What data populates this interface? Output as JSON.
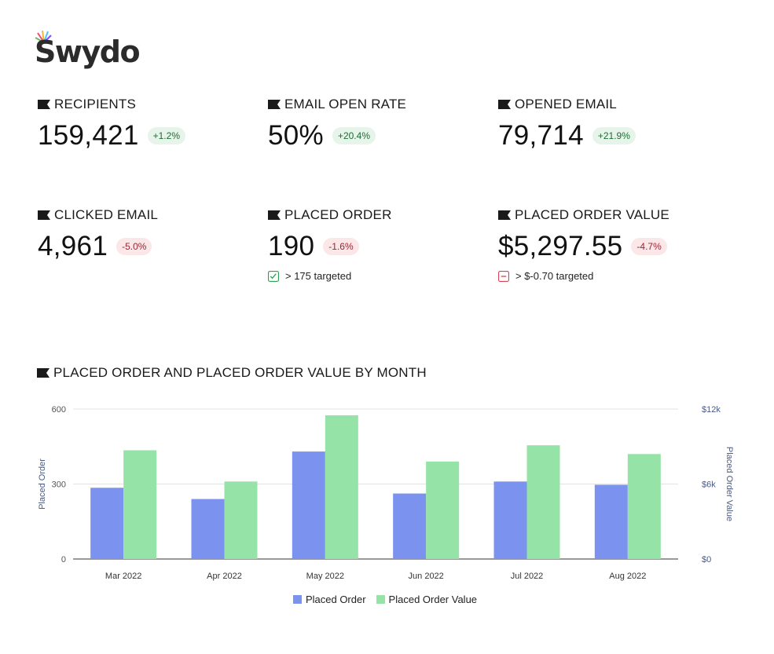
{
  "brand": {
    "name": "Swydo"
  },
  "kpis": [
    {
      "title": "RECIPIENTS",
      "value": "159,421",
      "change": "+1.2%",
      "trend": "positive"
    },
    {
      "title": "EMAIL OPEN RATE",
      "value": "50%",
      "change": "+20.4%",
      "trend": "positive"
    },
    {
      "title": "OPENED EMAIL",
      "value": "79,714",
      "change": "+21.9%",
      "trend": "positive"
    },
    {
      "title": "CLICKED EMAIL",
      "value": "4,961",
      "change": "-5.0%",
      "trend": "negative"
    },
    {
      "title": "PLACED ORDER",
      "value": "190",
      "change": "-1.6%",
      "trend": "negative",
      "target": {
        "text": "> 175 targeted",
        "met": true
      }
    },
    {
      "title": "PLACED ORDER VALUE",
      "value": "$5,297.55",
      "change": "-4.7%",
      "trend": "negative",
      "target": {
        "text": "> $-0.70 targeted",
        "met": false
      }
    }
  ],
  "colors": {
    "positive_bg": "#e6f4ea",
    "positive_text": "#1e6b36",
    "negative_bg": "#fbe6e8",
    "negative_text": "#9b2533",
    "series_order": "#7b93ee",
    "series_value": "#95e3a6",
    "target_met": "#2e9e4f",
    "target_missed": "#d64452"
  },
  "chart_data": {
    "type": "bar",
    "title": "PLACED ORDER AND PLACED ORDER VALUE BY MONTH",
    "categories": [
      "Mar 2022",
      "Apr 2022",
      "May 2022",
      "Jun 2022",
      "Jul 2022",
      "Aug 2022"
    ],
    "series": [
      {
        "name": "Placed Order",
        "axis": "left",
        "values": [
          285,
          240,
          430,
          262,
          310,
          297
        ]
      },
      {
        "name": "Placed Order Value",
        "axis": "right",
        "values": [
          8700,
          6200,
          11500,
          7800,
          9100,
          8400
        ]
      }
    ],
    "ylabel": "Placed Order",
    "ylabel_right": "Placed Order Value",
    "ylim": [
      0,
      600
    ],
    "ylim_right": [
      0,
      12000
    ],
    "yticks": [
      "0",
      "300",
      "600"
    ],
    "yticks_right": [
      "$0",
      "$6k",
      "$12k"
    ],
    "grid": true,
    "legend": "bottom-center"
  }
}
